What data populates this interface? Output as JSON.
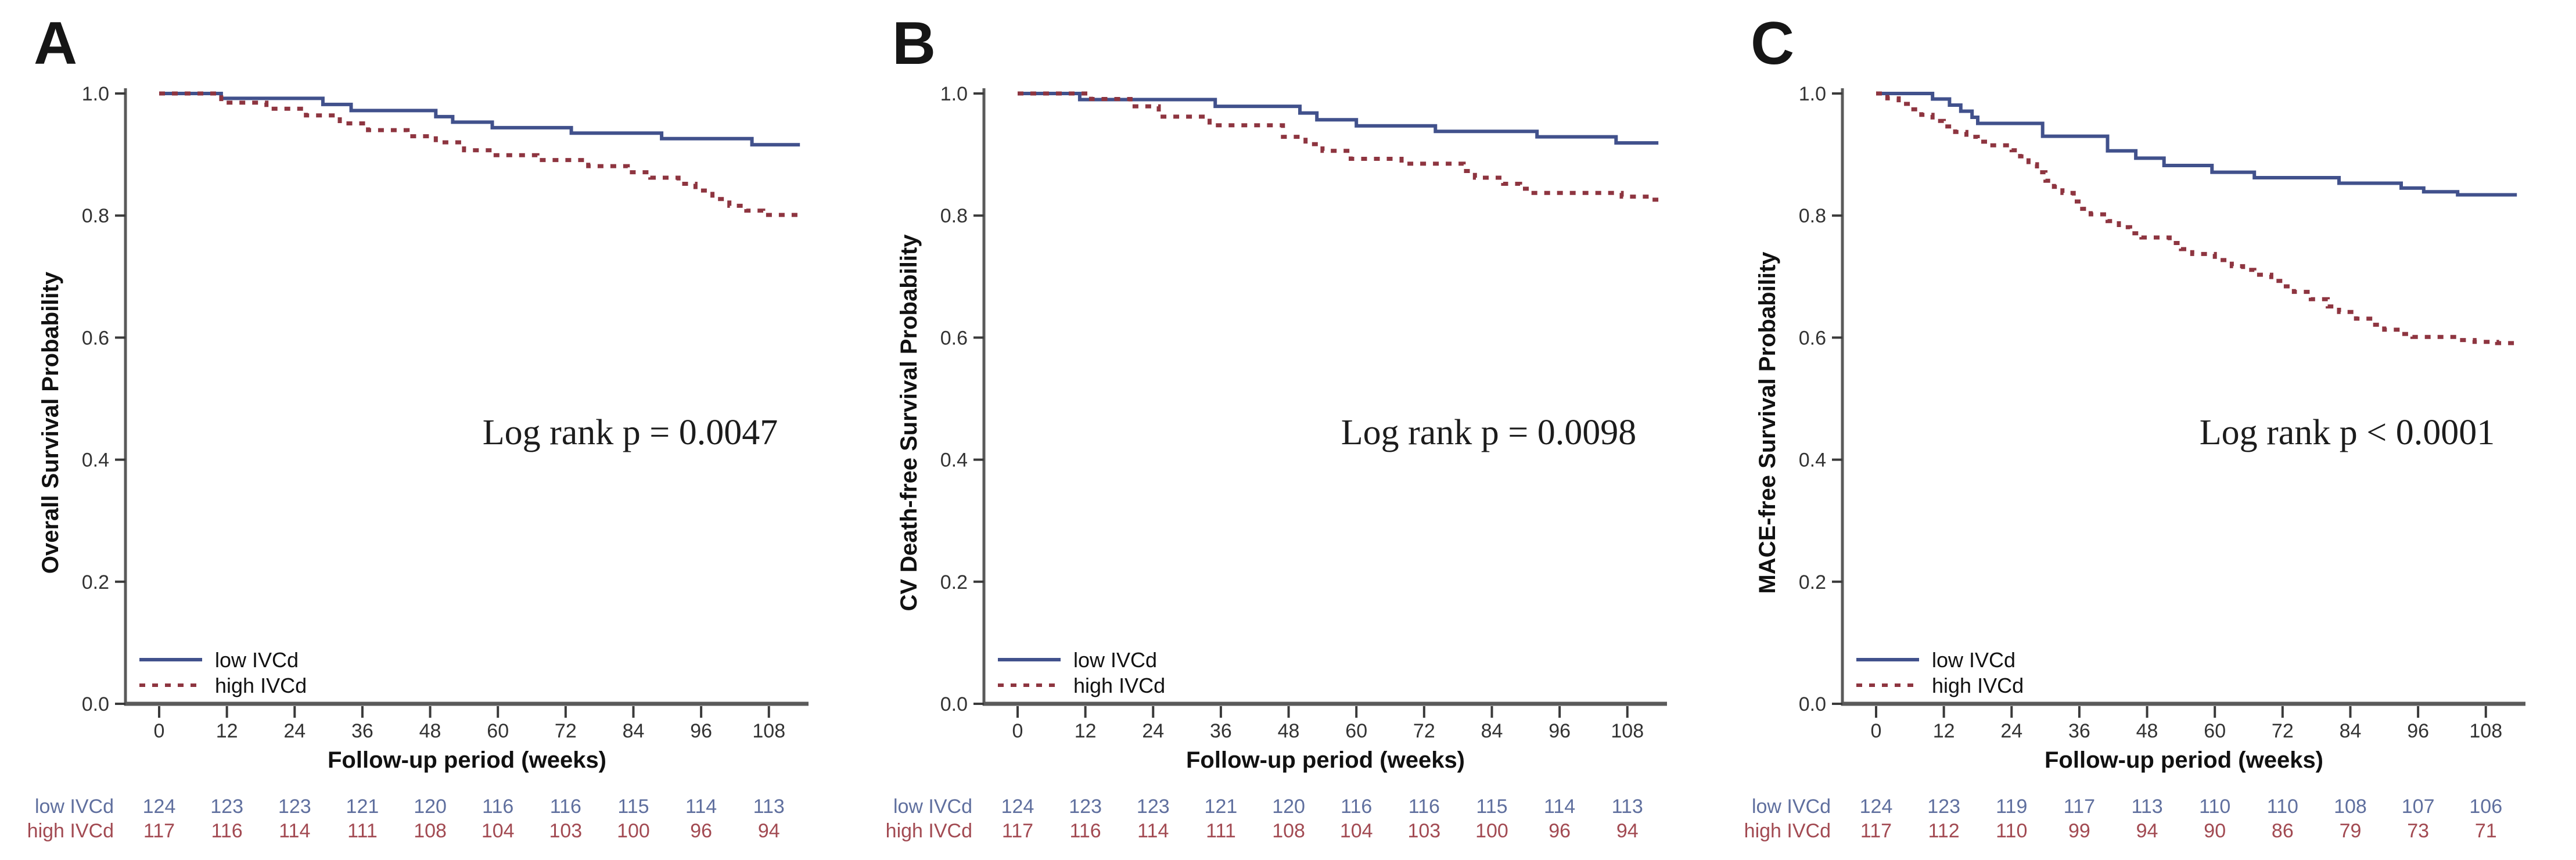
{
  "colors": {
    "low": "#41518c",
    "high": "#8e3540",
    "risk_low_text": "#5f6f9e",
    "risk_high_text": "#a24a52",
    "axis": "#5a5a5a",
    "tick": "#3a3a3a"
  },
  "chart_data": [
    {
      "type": "line",
      "panel_label": "A",
      "xlabel": "Follow-up period (weeks)",
      "ylabel": "Overall Survival Probability",
      "annotation": "Log rank p = 0.0047",
      "x_ticks": [
        0,
        12,
        24,
        36,
        48,
        60,
        72,
        84,
        96,
        108
      ],
      "y_ticks": [
        0.0,
        0.2,
        0.4,
        0.6,
        0.8,
        1.0
      ],
      "xlim": [
        0,
        113.5
      ],
      "ylim": [
        0.0,
        1.0
      ],
      "series": [
        {
          "name": "low IVCd",
          "legend_label": "low  IVCd",
          "style": "solid",
          "color_key": "low",
          "points": [
            [
              0,
              1
            ],
            [
              11,
              0.992
            ],
            [
              29,
              0.982
            ],
            [
              34,
              0.972
            ],
            [
              49,
              0.962
            ],
            [
              52,
              0.953
            ],
            [
              59,
              0.944
            ],
            [
              73,
              0.935
            ],
            [
              89,
              0.926
            ],
            [
              105,
              0.916
            ],
            [
              113.5,
              0.916
            ]
          ]
        },
        {
          "name": "high IVCd",
          "legend_label": "high IVCd",
          "style": "dashed",
          "color_key": "high",
          "points": [
            [
              0,
              1
            ],
            [
              11,
              0.985
            ],
            [
              19,
              0.975
            ],
            [
              26,
              0.964
            ],
            [
              32,
              0.951
            ],
            [
              37,
              0.94
            ],
            [
              44,
              0.93
            ],
            [
              49,
              0.92
            ],
            [
              54,
              0.907
            ],
            [
              59,
              0.899
            ],
            [
              67,
              0.891
            ],
            [
              76,
              0.881
            ],
            [
              83,
              0.871
            ],
            [
              87,
              0.862
            ],
            [
              92,
              0.852
            ],
            [
              95,
              0.841
            ],
            [
              98,
              0.827
            ],
            [
              101,
              0.816
            ],
            [
              104,
              0.808
            ],
            [
              107,
              0.801
            ],
            [
              113.5,
              0.797
            ]
          ]
        }
      ],
      "number_at_risk": {
        "time_points": [
          0,
          12,
          24,
          36,
          48,
          60,
          72,
          84,
          96,
          108
        ],
        "rows": [
          {
            "label": "low  IVCd",
            "color_key": "risk_low_text",
            "counts": [
              124,
              123,
              123,
              121,
              120,
              116,
              116,
              115,
              114,
              113
            ]
          },
          {
            "label": "high IVCd",
            "color_key": "risk_high_text",
            "counts": [
              117,
              116,
              114,
              111,
              108,
              104,
              103,
              100,
              96,
              94
            ]
          }
        ]
      }
    },
    {
      "type": "line",
      "panel_label": "B",
      "xlabel": "Follow-up period (weeks)",
      "ylabel": "CV Death-free Survival Probability",
      "annotation": "Log rank p = 0.0098",
      "x_ticks": [
        0,
        12,
        24,
        36,
        48,
        60,
        72,
        84,
        96,
        108
      ],
      "y_ticks": [
        0.0,
        0.2,
        0.4,
        0.6,
        0.8,
        1.0
      ],
      "xlim": [
        0,
        113.5
      ],
      "ylim": [
        0.0,
        1.0
      ],
      "series": [
        {
          "name": "low IVCd",
          "legend_label": "low  IVCd",
          "style": "solid",
          "color_key": "low",
          "points": [
            [
              0,
              1
            ],
            [
              11,
              0.99
            ],
            [
              35,
              0.979
            ],
            [
              50,
              0.968
            ],
            [
              53,
              0.957
            ],
            [
              60,
              0.947
            ],
            [
              74,
              0.938
            ],
            [
              92,
              0.929
            ],
            [
              106,
              0.919
            ],
            [
              113.5,
              0.919
            ]
          ]
        },
        {
          "name": "high IVCd",
          "legend_label": "high IVCd",
          "style": "dashed",
          "color_key": "high",
          "points": [
            [
              0,
              1
            ],
            [
              13,
              0.991
            ],
            [
              20,
              0.979
            ],
            [
              25,
              0.962
            ],
            [
              34,
              0.948
            ],
            [
              47,
              0.929
            ],
            [
              51,
              0.917
            ],
            [
              54,
              0.906
            ],
            [
              59,
              0.893
            ],
            [
              68,
              0.885
            ],
            [
              79,
              0.873
            ],
            [
              81,
              0.862
            ],
            [
              86,
              0.852
            ],
            [
              89,
              0.844
            ],
            [
              91,
              0.837
            ],
            [
              107,
              0.831
            ],
            [
              112,
              0.826
            ],
            [
              113.5,
              0.826
            ]
          ]
        }
      ],
      "number_at_risk": {
        "time_points": [
          0,
          12,
          24,
          36,
          48,
          60,
          72,
          84,
          96,
          108
        ],
        "rows": [
          {
            "label": "low  IVCd",
            "color_key": "risk_low_text",
            "counts": [
              124,
              123,
              123,
              121,
              120,
              116,
              116,
              115,
              114,
              113
            ]
          },
          {
            "label": "high IVCd",
            "color_key": "risk_high_text",
            "counts": [
              117,
              116,
              114,
              111,
              108,
              104,
              103,
              100,
              96,
              94
            ]
          }
        ]
      }
    },
    {
      "type": "line",
      "panel_label": "C",
      "xlabel": "Follow-up period (weeks)",
      "ylabel": "MACE-free Survival Probability",
      "annotation": "Log rank p < 0.0001",
      "x_ticks": [
        0,
        12,
        24,
        36,
        48,
        60,
        72,
        84,
        96,
        108
      ],
      "y_ticks": [
        0.0,
        0.2,
        0.4,
        0.6,
        0.8,
        1.0
      ],
      "xlim": [
        0,
        113.5
      ],
      "ylim": [
        0.0,
        1.0
      ],
      "series": [
        {
          "name": "low IVCd",
          "legend_label": "low  IVCd",
          "style": "solid",
          "color_key": "low",
          "points": [
            [
              0,
              1
            ],
            [
              10,
              0.991
            ],
            [
              13,
              0.981
            ],
            [
              15,
              0.971
            ],
            [
              17,
              0.961
            ],
            [
              18,
              0.951
            ],
            [
              29.5,
              0.93
            ],
            [
              41,
              0.906
            ],
            [
              46,
              0.894
            ],
            [
              51,
              0.882
            ],
            [
              59.5,
              0.871
            ],
            [
              67,
              0.862
            ],
            [
              82,
              0.853
            ],
            [
              93,
              0.845
            ],
            [
              97,
              0.839
            ],
            [
              103,
              0.834
            ],
            [
              113.5,
              0.834
            ]
          ]
        },
        {
          "name": "high IVCd",
          "legend_label": "high IVCd",
          "style": "dashed",
          "color_key": "high",
          "points": [
            [
              0,
              1
            ],
            [
              2,
              0.992
            ],
            [
              4,
              0.983
            ],
            [
              6,
              0.974
            ],
            [
              8,
              0.965
            ],
            [
              10,
              0.955
            ],
            [
              12,
              0.946
            ],
            [
              14,
              0.937
            ],
            [
              16,
              0.929
            ],
            [
              18,
              0.921
            ],
            [
              20,
              0.915
            ],
            [
              24,
              0.907
            ],
            [
              25.5,
              0.897
            ],
            [
              27,
              0.884
            ],
            [
              28.5,
              0.871
            ],
            [
              30,
              0.857
            ],
            [
              31.5,
              0.847
            ],
            [
              33,
              0.837
            ],
            [
              35,
              0.823
            ],
            [
              36.5,
              0.811
            ],
            [
              38,
              0.802
            ],
            [
              41,
              0.791
            ],
            [
              43,
              0.781
            ],
            [
              45,
              0.771
            ],
            [
              47,
              0.764
            ],
            [
              52,
              0.755
            ],
            [
              54,
              0.745
            ],
            [
              56,
              0.737
            ],
            [
              60,
              0.727
            ],
            [
              63,
              0.717
            ],
            [
              65,
              0.711
            ],
            [
              67,
              0.703
            ],
            [
              70,
              0.693
            ],
            [
              72,
              0.684
            ],
            [
              74,
              0.675
            ],
            [
              77,
              0.663
            ],
            [
              80,
              0.651
            ],
            [
              82,
              0.642
            ],
            [
              85,
              0.631
            ],
            [
              88,
              0.621
            ],
            [
              90,
              0.613
            ],
            [
              93,
              0.606
            ],
            [
              95,
              0.601
            ],
            [
              103,
              0.596
            ],
            [
              106,
              0.593
            ],
            [
              110,
              0.591
            ],
            [
              113.5,
              0.591
            ]
          ]
        }
      ],
      "number_at_risk": {
        "time_points": [
          0,
          12,
          24,
          36,
          48,
          60,
          72,
          84,
          96,
          108
        ],
        "rows": [
          {
            "label": "low  IVCd",
            "color_key": "risk_low_text",
            "counts": [
              124,
              123,
              119,
              117,
              113,
              110,
              110,
              108,
              107,
              106
            ]
          },
          {
            "label": "high IVCd",
            "color_key": "risk_high_text",
            "counts": [
              117,
              112,
              110,
              99,
              94,
              90,
              86,
              79,
              73,
              71
            ]
          }
        ]
      }
    }
  ]
}
